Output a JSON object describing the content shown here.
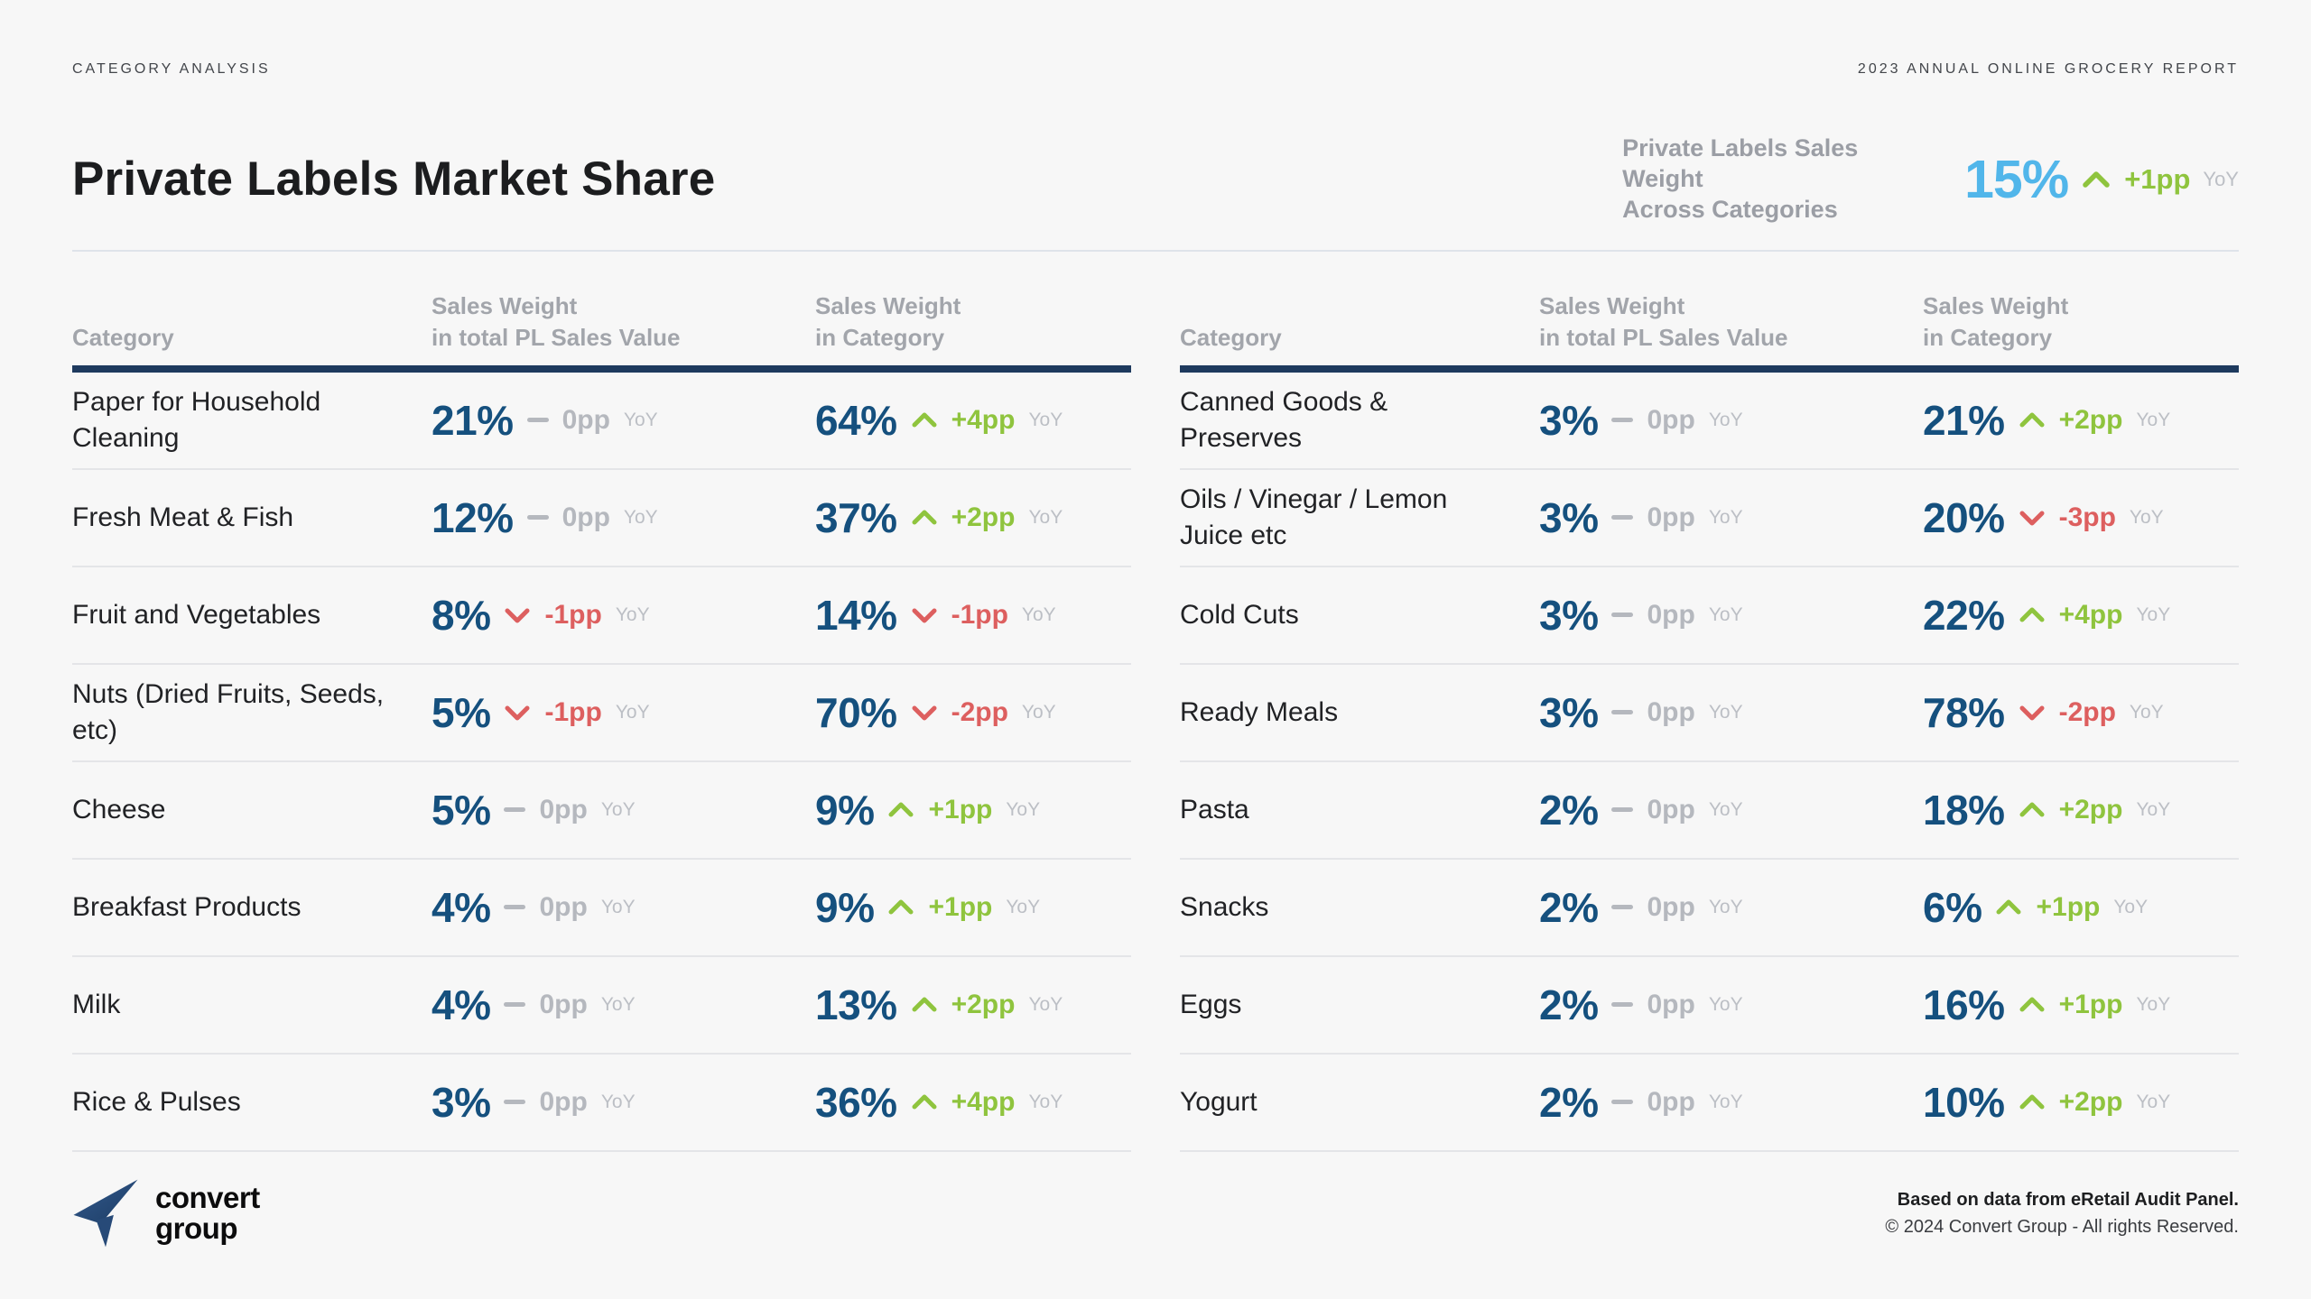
{
  "topbar": {
    "left": "CATEGORY ANALYSIS",
    "right": "2023 ANNUAL ONLINE GROCERY REPORT"
  },
  "header": {
    "title": "Private Labels Market Share"
  },
  "summary": {
    "label_line1": "Private Labels Sales Weight",
    "label_line2": "Across Categories",
    "value": "15%",
    "delta": "+1pp",
    "dir": "up",
    "period": "YoY"
  },
  "table_headers": {
    "category": "Category",
    "col2_line1": "Sales Weight",
    "col2_line2": "in total PL Sales Value",
    "col3_line1": "Sales Weight",
    "col3_line2": "in Category"
  },
  "yoy_label": "YoY",
  "tables": {
    "left": {
      "rows": [
        {
          "name": "Paper for Household Cleaning",
          "pl": {
            "value": "21%",
            "delta": "0pp",
            "dir": "flat"
          },
          "cat": {
            "value": "64%",
            "delta": "+4pp",
            "dir": "up"
          }
        },
        {
          "name": "Fresh Meat & Fish",
          "pl": {
            "value": "12%",
            "delta": "0pp",
            "dir": "flat"
          },
          "cat": {
            "value": "37%",
            "delta": "+2pp",
            "dir": "up"
          }
        },
        {
          "name": "Fruit and Vegetables",
          "pl": {
            "value": "8%",
            "delta": "-1pp",
            "dir": "down"
          },
          "cat": {
            "value": "14%",
            "delta": "-1pp",
            "dir": "down"
          }
        },
        {
          "name": "Nuts (Dried Fruits, Seeds, etc)",
          "pl": {
            "value": "5%",
            "delta": "-1pp",
            "dir": "down"
          },
          "cat": {
            "value": "70%",
            "delta": "-2pp",
            "dir": "down"
          }
        },
        {
          "name": "Cheese",
          "pl": {
            "value": "5%",
            "delta": "0pp",
            "dir": "flat"
          },
          "cat": {
            "value": "9%",
            "delta": "+1pp",
            "dir": "up"
          }
        },
        {
          "name": "Breakfast Products",
          "pl": {
            "value": "4%",
            "delta": "0pp",
            "dir": "flat"
          },
          "cat": {
            "value": "9%",
            "delta": "+1pp",
            "dir": "up"
          }
        },
        {
          "name": "Milk",
          "pl": {
            "value": "4%",
            "delta": "0pp",
            "dir": "flat"
          },
          "cat": {
            "value": "13%",
            "delta": "+2pp",
            "dir": "up"
          }
        },
        {
          "name": "Rice & Pulses",
          "pl": {
            "value": "3%",
            "delta": "0pp",
            "dir": "flat"
          },
          "cat": {
            "value": "36%",
            "delta": "+4pp",
            "dir": "up"
          }
        }
      ]
    },
    "right": {
      "rows": [
        {
          "name": "Canned Goods & Preserves",
          "pl": {
            "value": "3%",
            "delta": "0pp",
            "dir": "flat"
          },
          "cat": {
            "value": "21%",
            "delta": "+2pp",
            "dir": "up"
          }
        },
        {
          "name": "Oils / Vinegar / Lemon Juice etc",
          "pl": {
            "value": "3%",
            "delta": "0pp",
            "dir": "flat"
          },
          "cat": {
            "value": "20%",
            "delta": "-3pp",
            "dir": "down"
          }
        },
        {
          "name": "Cold Cuts",
          "pl": {
            "value": "3%",
            "delta": "0pp",
            "dir": "flat"
          },
          "cat": {
            "value": "22%",
            "delta": "+4pp",
            "dir": "up"
          }
        },
        {
          "name": "Ready Meals",
          "pl": {
            "value": "3%",
            "delta": "0pp",
            "dir": "flat"
          },
          "cat": {
            "value": "78%",
            "delta": "-2pp",
            "dir": "down"
          }
        },
        {
          "name": "Pasta",
          "pl": {
            "value": "2%",
            "delta": "0pp",
            "dir": "flat"
          },
          "cat": {
            "value": "18%",
            "delta": "+2pp",
            "dir": "up"
          }
        },
        {
          "name": "Snacks",
          "pl": {
            "value": "2%",
            "delta": "0pp",
            "dir": "flat"
          },
          "cat": {
            "value": "6%",
            "delta": "+1pp",
            "dir": "up"
          }
        },
        {
          "name": "Eggs",
          "pl": {
            "value": "2%",
            "delta": "0pp",
            "dir": "flat"
          },
          "cat": {
            "value": "16%",
            "delta": "+1pp",
            "dir": "up"
          }
        },
        {
          "name": "Yogurt",
          "pl": {
            "value": "2%",
            "delta": "0pp",
            "dir": "flat"
          },
          "cat": {
            "value": "10%",
            "delta": "+2pp",
            "dir": "up"
          }
        }
      ]
    }
  },
  "footer": {
    "logo_line1": "convert",
    "logo_line2": "group",
    "note_bold": "Based on data from eRetail Audit Panel.",
    "note_copyright": "© 2024 Convert Group - All rights Reserved."
  },
  "colors": {
    "accent_navy": "#15507e",
    "header_border": "#1e3a5e",
    "up_green": "#8fc43e",
    "down_red": "#dd5f5f",
    "flat_gray": "#b5b8be",
    "value_blue": "#51b6ea",
    "muted_gray": "#9b9ea5",
    "yoy_gray": "#bcbfc5",
    "background": "#f7f7f7"
  }
}
